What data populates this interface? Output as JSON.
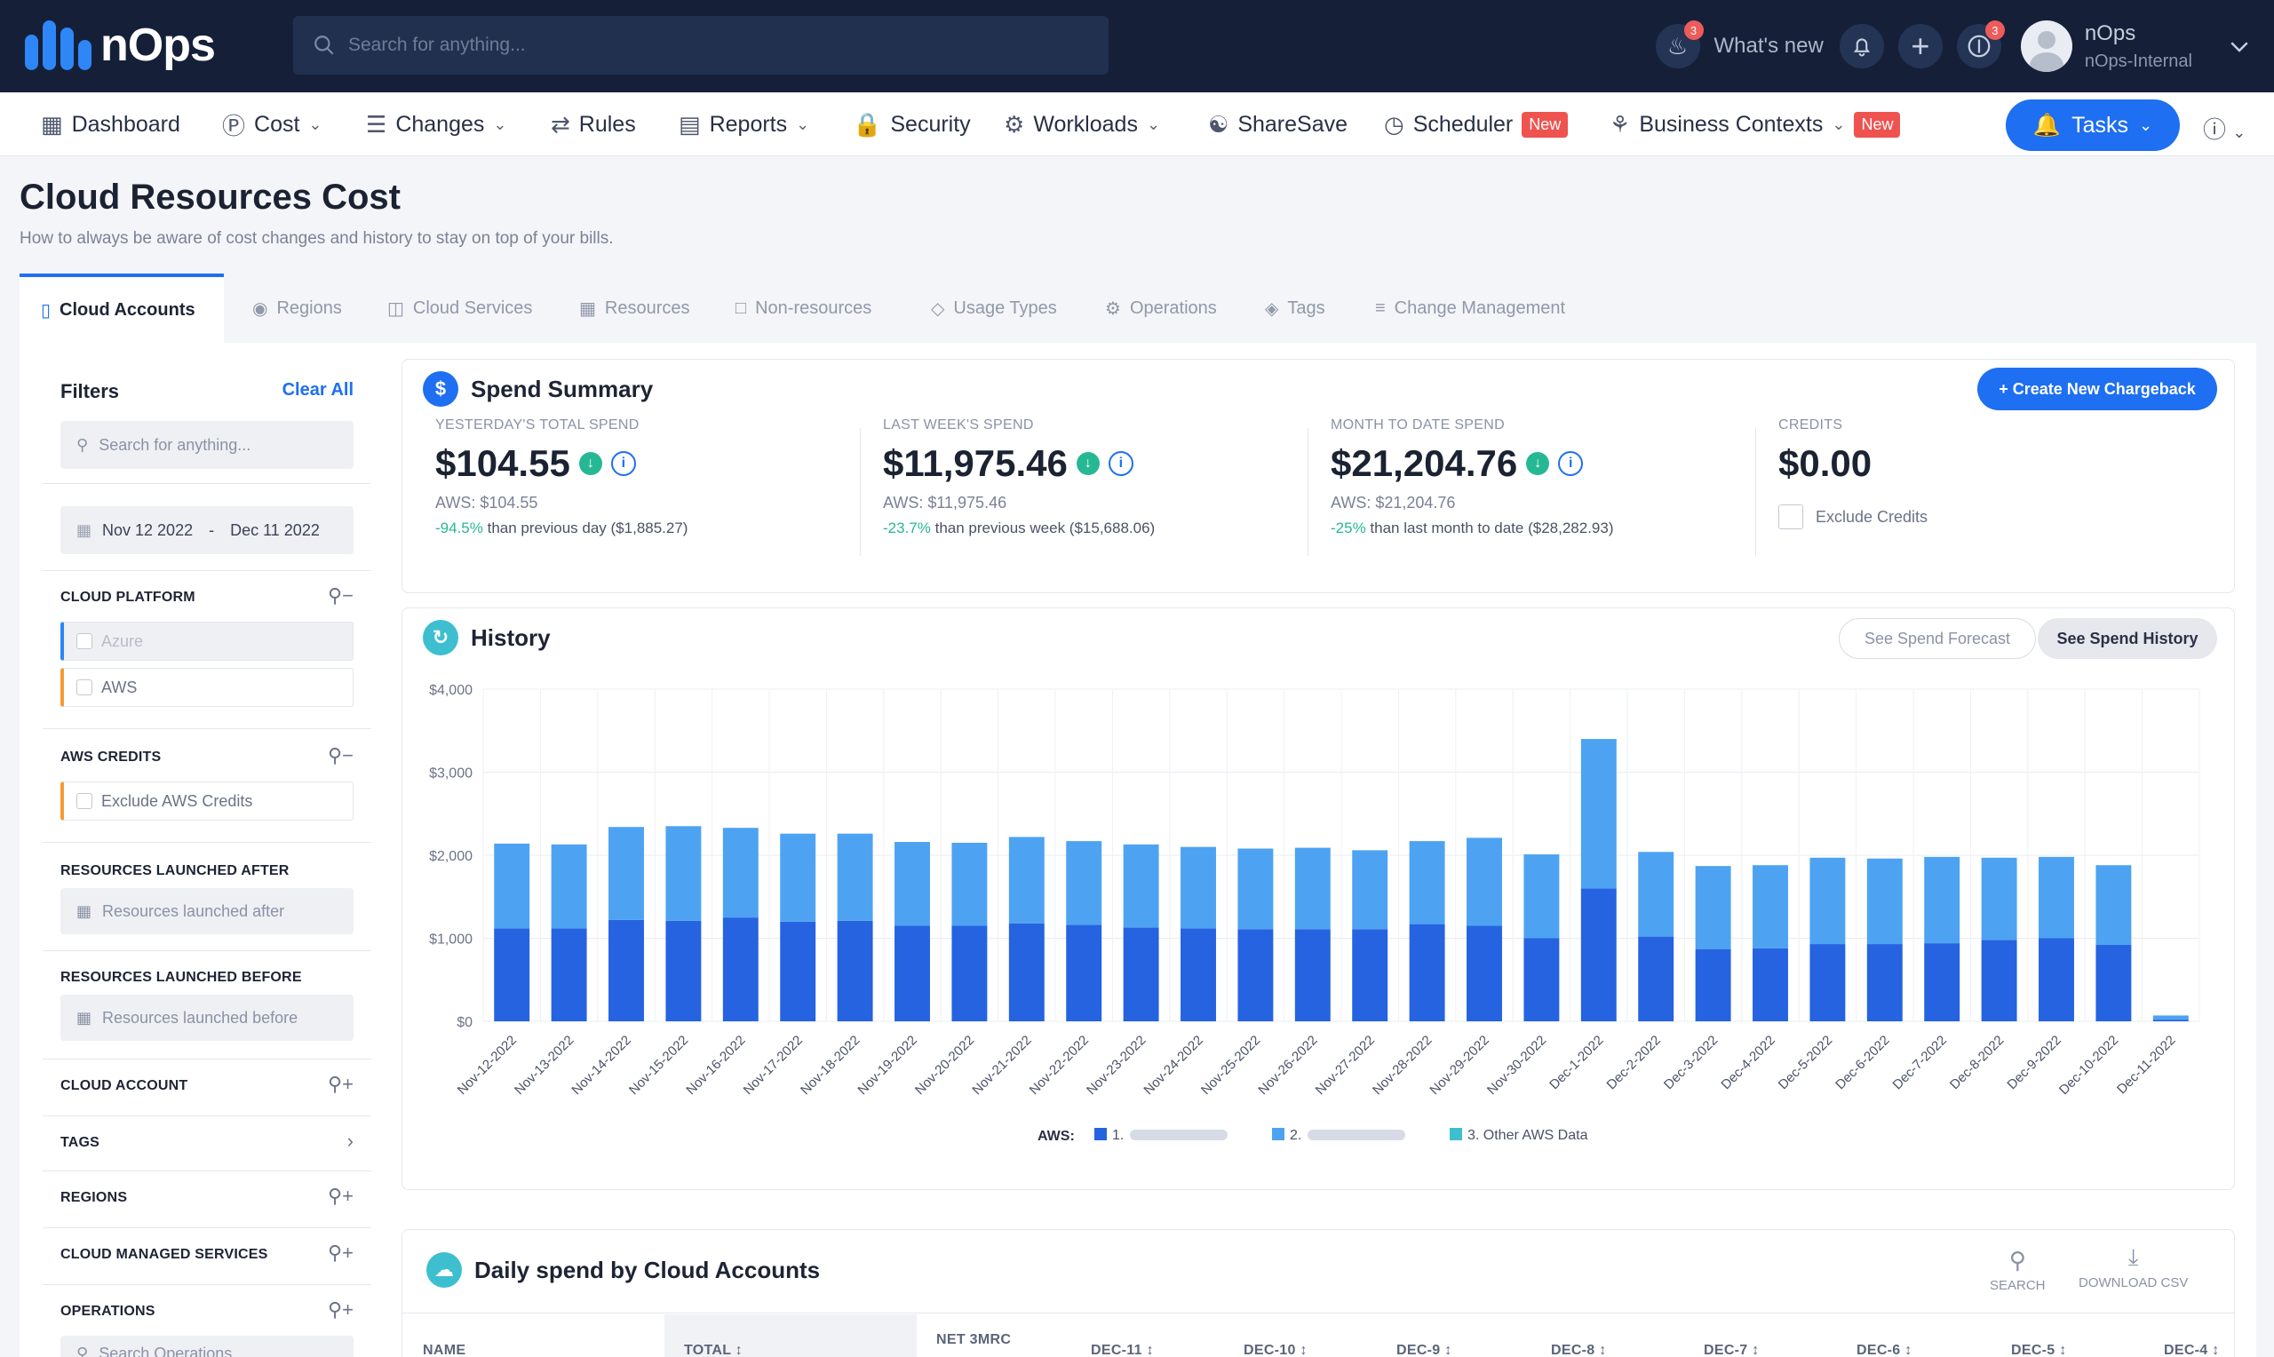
{
  "brand": {
    "name": "nOps",
    "accent": "#1e6ff1",
    "topbar_bg": "#152038"
  },
  "topbar": {
    "search_placeholder": "Search for anything...",
    "whats_new": "What's new",
    "fire_badge": "3",
    "account_badge": "3",
    "user_name": "nOps",
    "user_org": "nOps-Internal",
    "icons": [
      "fire-icon",
      "bell-icon",
      "plus-icon",
      "dollar-icon",
      "avatar",
      "chevron-down-icon"
    ]
  },
  "nav": {
    "items": [
      {
        "label": "Dashboard",
        "icon": "grid-icon",
        "dropdown": false
      },
      {
        "label": "Cost",
        "icon": "dollar-icon",
        "dropdown": true
      },
      {
        "label": "Changes",
        "icon": "list-icon",
        "dropdown": true
      },
      {
        "label": "Rules",
        "icon": "shuffle-icon",
        "dropdown": false
      },
      {
        "label": "Reports",
        "icon": "report-icon",
        "dropdown": true
      },
      {
        "label": "Security",
        "icon": "lock-icon",
        "dropdown": false
      },
      {
        "label": "Workloads",
        "icon": "gear-icon",
        "dropdown": true
      },
      {
        "label": "ShareSave",
        "icon": "handshake-icon",
        "dropdown": false
      },
      {
        "label": "Scheduler",
        "icon": "clock-icon",
        "dropdown": false,
        "badge": "New"
      },
      {
        "label": "Business Contexts",
        "icon": "network-icon",
        "dropdown": true,
        "badge": "New"
      }
    ],
    "tasks_label": "Tasks"
  },
  "page": {
    "title": "Cloud Resources Cost",
    "subtitle": "How to always be aware of cost changes and history to stay on top of your bills."
  },
  "tabs": [
    {
      "label": "Cloud Accounts",
      "active": true
    },
    {
      "label": "Regions"
    },
    {
      "label": "Cloud Services"
    },
    {
      "label": "Resources"
    },
    {
      "label": "Non-resources"
    },
    {
      "label": "Usage Types"
    },
    {
      "label": "Operations"
    },
    {
      "label": "Tags"
    },
    {
      "label": "Change Management"
    }
  ],
  "filters": {
    "title": "Filters",
    "clear_all": "Clear All",
    "search_placeholder": "Search for anything...",
    "date_from": "Nov 12 2022",
    "date_sep": "-",
    "date_to": "Dec 11 2022",
    "sections": {
      "cloud_platform": "CLOUD PLATFORM",
      "aws_credits": "AWS CREDITS",
      "launched_after": "RESOURCES LAUNCHED AFTER",
      "launched_before": "RESOURCES LAUNCHED BEFORE",
      "cloud_account": "CLOUD ACCOUNT",
      "tags": "TAGS",
      "regions": "REGIONS",
      "managed_services": "CLOUD MANAGED SERVICES",
      "operations": "OPERATIONS"
    },
    "platform_options": [
      "Azure",
      "AWS"
    ],
    "exclude_aws_credits": "Exclude AWS Credits",
    "launched_after_placeholder": "Resources launched after",
    "launched_before_placeholder": "Resources launched before",
    "operations_placeholder": "Search Operations..."
  },
  "spend_summary": {
    "title": "Spend Summary",
    "create_button": "+ Create New Chargeback",
    "stats": [
      {
        "label": "YESTERDAY'S TOTAL SPEND",
        "value": "$104.55",
        "aws": "AWS: $104.55",
        "pct": "-94.5%",
        "rest": " than previous day ($1,885.27)"
      },
      {
        "label": "LAST WEEK'S SPEND",
        "value": "$11,975.46",
        "aws": "AWS: $11,975.46",
        "pct": "-23.7%",
        "rest": " than previous week ($15,688.06)"
      },
      {
        "label": "MONTH TO DATE SPEND",
        "value": "$21,204.76",
        "aws": "AWS: $21,204.76",
        "pct": "-25%",
        "rest": " than last month to date ($28,282.93)"
      }
    ],
    "credits": {
      "label": "CREDITS",
      "value": "$0.00",
      "exclude_label": "Exclude Credits"
    }
  },
  "history": {
    "title": "History",
    "forecast_button": "See Spend Forecast",
    "history_button": "See Spend History",
    "colors": {
      "dark": "#2563e0",
      "light": "#4da3f2",
      "teal": "#3dbfd0"
    }
  },
  "chart_data": {
    "type": "bar",
    "stacked": true,
    "ylim": [
      0,
      4000
    ],
    "yticks": [
      "$0",
      "$1,000",
      "$2,000",
      "$3,000",
      "$4,000"
    ],
    "categories": [
      "Nov-12-2022",
      "Nov-13-2022",
      "Nov-14-2022",
      "Nov-15-2022",
      "Nov-16-2022",
      "Nov-17-2022",
      "Nov-18-2022",
      "Nov-19-2022",
      "Nov-20-2022",
      "Nov-21-2022",
      "Nov-22-2022",
      "Nov-23-2022",
      "Nov-24-2022",
      "Nov-25-2022",
      "Nov-26-2022",
      "Nov-27-2022",
      "Nov-28-2022",
      "Nov-29-2022",
      "Nov-30-2022",
      "Dec-1-2022",
      "Dec-2-2022",
      "Dec-3-2022",
      "Dec-4-2022",
      "Dec-5-2022",
      "Dec-6-2022",
      "Dec-7-2022",
      "Dec-8-2022",
      "Dec-9-2022",
      "Dec-10-2022",
      "Dec-11-2022"
    ],
    "series": [
      {
        "name": "1.",
        "color": "#2563e0",
        "values": [
          1120,
          1120,
          1220,
          1210,
          1250,
          1200,
          1210,
          1150,
          1150,
          1180,
          1160,
          1130,
          1120,
          1110,
          1110,
          1110,
          1170,
          1150,
          1000,
          1600,
          1020,
          870,
          880,
          930,
          930,
          940,
          980,
          1000,
          920,
          20
        ]
      },
      {
        "name": "2.",
        "color": "#4da3f2",
        "values": [
          1020,
          1010,
          1120,
          1140,
          1080,
          1060,
          1050,
          1010,
          1000,
          1040,
          1010,
          1000,
          980,
          970,
          980,
          950,
          1000,
          1060,
          1010,
          1800,
          1020,
          1000,
          1000,
          1040,
          1030,
          1040,
          990,
          980,
          960,
          50
        ]
      },
      {
        "name": "3. Other AWS Data",
        "color": "#3dbfd0",
        "values": [
          0,
          0,
          0,
          0,
          0,
          0,
          0,
          0,
          0,
          0,
          0,
          0,
          0,
          0,
          0,
          0,
          0,
          0,
          0,
          0,
          0,
          0,
          0,
          0,
          0,
          0,
          0,
          0,
          0,
          0
        ]
      }
    ],
    "legend_title": "AWS:",
    "legend_position": "bottom"
  },
  "daily": {
    "title": "Daily spend by Cloud Accounts",
    "search_label": "SEARCH",
    "download_label": "DOWNLOAD CSV",
    "columns": [
      "NAME",
      "TOTAL",
      "NET 3MRC",
      "DEC-11",
      "DEC-10",
      "DEC-9",
      "DEC-8",
      "DEC-7",
      "DEC-6",
      "DEC-5",
      "DEC-4"
    ]
  }
}
